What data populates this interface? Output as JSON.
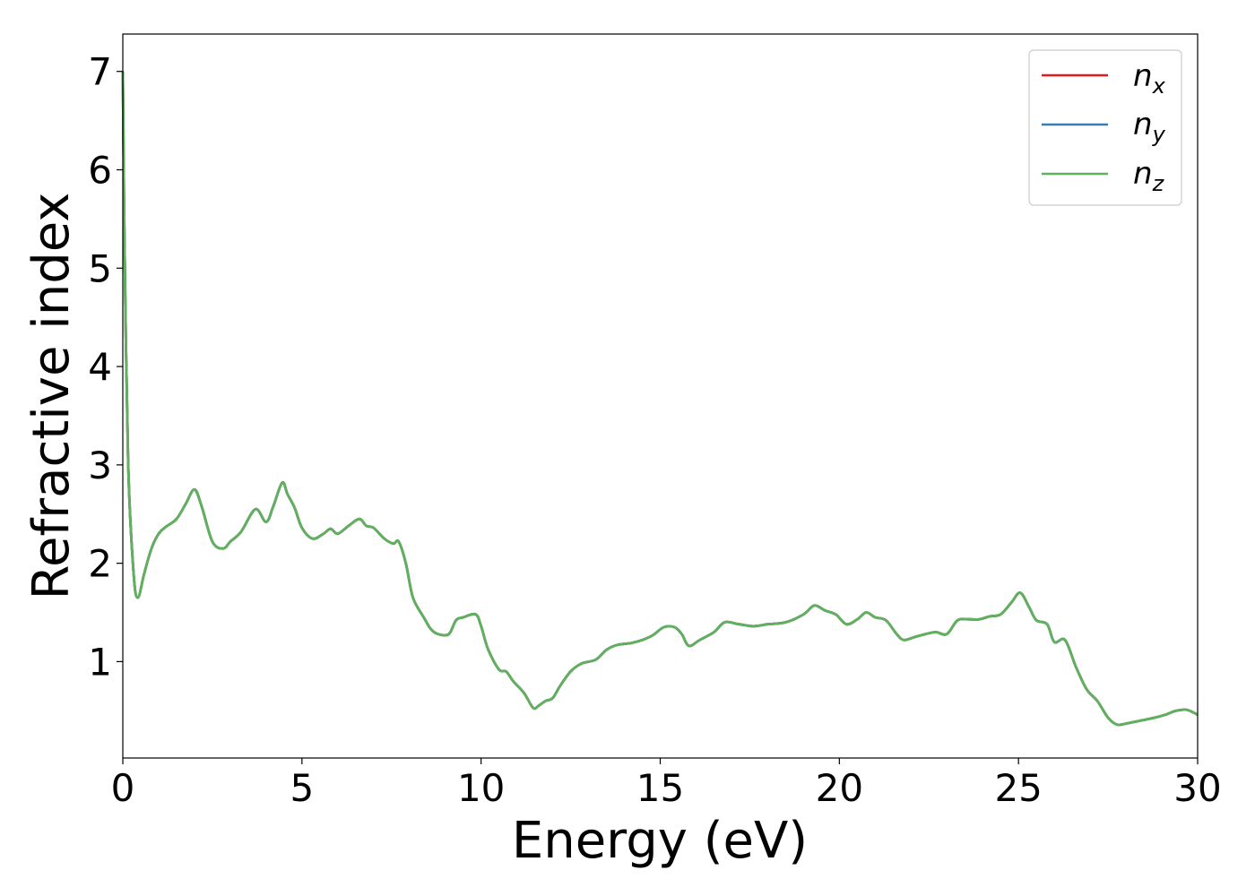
{
  "chart_data": {
    "type": "line",
    "title": "",
    "xlabel": "Energy (eV)",
    "ylabel": "Refractive index",
    "xlim": [
      0,
      30
    ],
    "ylim": [
      0.02,
      7.38
    ],
    "xticks": [
      "0",
      "5",
      "10",
      "15",
      "20",
      "25",
      "30"
    ],
    "yticks": [
      "1",
      "2",
      "3",
      "4",
      "5",
      "6",
      "7"
    ],
    "grid": false,
    "legend_position": "top-right",
    "series": [
      {
        "name": "n_x",
        "legend_base": "n",
        "legend_sub": "x",
        "color": "#e41a1c"
      },
      {
        "name": "n_y",
        "legend_base": "n",
        "legend_sub": "y",
        "color": "#377eb8"
      },
      {
        "name": "n_z",
        "legend_base": "n",
        "legend_sub": "z",
        "color": "#5fb15c"
      }
    ],
    "x": [
      0,
      0.05,
      0.15,
      0.3,
      0.42,
      0.6,
      0.8,
      1.0,
      1.2,
      1.5,
      1.75,
      2.0,
      2.2,
      2.5,
      2.8,
      3.0,
      3.3,
      3.7,
      4.0,
      4.2,
      4.45,
      4.6,
      4.8,
      5.0,
      5.3,
      5.6,
      5.8,
      6.0,
      6.3,
      6.6,
      6.8,
      7.0,
      7.3,
      7.55,
      7.7,
      7.9,
      8.1,
      8.4,
      8.6,
      8.8,
      9.1,
      9.3,
      9.5,
      9.85,
      10.0,
      10.2,
      10.5,
      10.7,
      10.9,
      11.2,
      11.45,
      11.6,
      11.8,
      12.0,
      12.2,
      12.5,
      12.8,
      13.2,
      13.5,
      13.8,
      14.2,
      14.5,
      14.8,
      15.1,
      15.4,
      15.6,
      15.8,
      16.1,
      16.5,
      16.8,
      17.2,
      17.6,
      18.0,
      18.5,
      19.0,
      19.3,
      19.6,
      19.9,
      20.2,
      20.5,
      20.75,
      21.0,
      21.3,
      21.6,
      21.8,
      22.1,
      22.4,
      22.7,
      23.0,
      23.3,
      23.6,
      23.9,
      24.2,
      24.5,
      24.8,
      25.05,
      25.3,
      25.5,
      25.8,
      26.0,
      26.3,
      26.6,
      26.9,
      27.2,
      27.5,
      27.75,
      28.0,
      28.4,
      28.8,
      29.1,
      29.4,
      29.7,
      30.0
    ],
    "values": [
      7.0,
      5.2,
      3.0,
      1.9,
      1.65,
      1.9,
      2.15,
      2.3,
      2.37,
      2.45,
      2.6,
      2.75,
      2.58,
      2.22,
      2.15,
      2.22,
      2.32,
      2.55,
      2.42,
      2.58,
      2.82,
      2.7,
      2.56,
      2.36,
      2.25,
      2.3,
      2.35,
      2.3,
      2.38,
      2.45,
      2.38,
      2.36,
      2.25,
      2.2,
      2.22,
      2.0,
      1.65,
      1.45,
      1.33,
      1.28,
      1.28,
      1.42,
      1.45,
      1.48,
      1.36,
      1.12,
      0.92,
      0.9,
      0.8,
      0.68,
      0.53,
      0.55,
      0.6,
      0.63,
      0.75,
      0.9,
      0.98,
      1.02,
      1.12,
      1.17,
      1.19,
      1.22,
      1.27,
      1.35,
      1.35,
      1.28,
      1.16,
      1.22,
      1.3,
      1.4,
      1.38,
      1.36,
      1.38,
      1.4,
      1.48,
      1.57,
      1.52,
      1.48,
      1.38,
      1.43,
      1.5,
      1.45,
      1.42,
      1.28,
      1.22,
      1.25,
      1.28,
      1.3,
      1.28,
      1.42,
      1.43,
      1.43,
      1.46,
      1.48,
      1.6,
      1.7,
      1.55,
      1.42,
      1.38,
      1.2,
      1.22,
      0.95,
      0.72,
      0.6,
      0.43,
      0.36,
      0.37,
      0.4,
      0.43,
      0.46,
      0.5,
      0.51,
      0.46
    ]
  }
}
